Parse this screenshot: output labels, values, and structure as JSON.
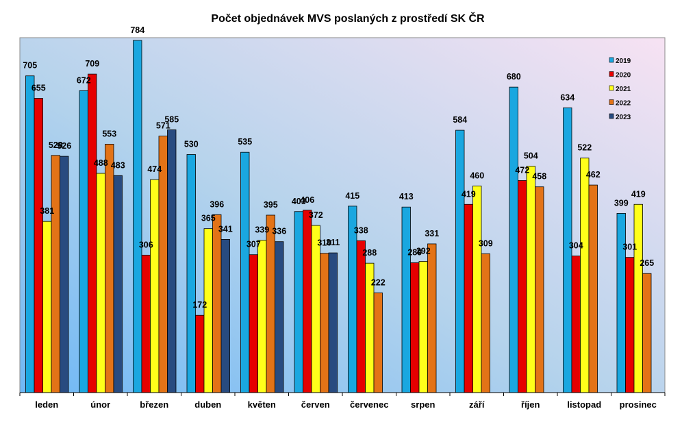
{
  "chart_data": {
    "type": "bar",
    "title": "Počet objednávek MVS poslaných z prostředí SK ČR",
    "xlabel": "",
    "ylabel": "",
    "ylim": [
      0,
      790
    ],
    "grid": false,
    "legend_position": "right",
    "categories": [
      "leden",
      "únor",
      "březen",
      "duben",
      "květen",
      "červen",
      "červenec",
      "srpen",
      "září",
      "říjen",
      "listopad",
      "prosinec"
    ],
    "series": [
      {
        "name": "2019",
        "color": "#1aa7e0",
        "values": [
          705,
          672,
          784,
          530,
          535,
          403,
          415,
          413,
          584,
          680,
          634,
          399
        ]
      },
      {
        "name": "2020",
        "color": "#e60000",
        "values": [
          655,
          709,
          306,
          172,
          307,
          406,
          338,
          289,
          419,
          472,
          304,
          301
        ]
      },
      {
        "name": "2021",
        "color": "#ffff1a",
        "values": [
          381,
          488,
          474,
          365,
          339,
          372,
          288,
          292,
          460,
          504,
          522,
          419
        ]
      },
      {
        "name": "2022",
        "color": "#e37317",
        "values": [
          528,
          553,
          571,
          396,
          395,
          310,
          222,
          331,
          309,
          458,
          462,
          265
        ]
      },
      {
        "name": "2023",
        "color": "#284b80",
        "values": [
          526,
          483,
          585,
          341,
          336,
          311,
          null,
          null,
          null,
          null,
          null,
          null
        ]
      }
    ]
  }
}
